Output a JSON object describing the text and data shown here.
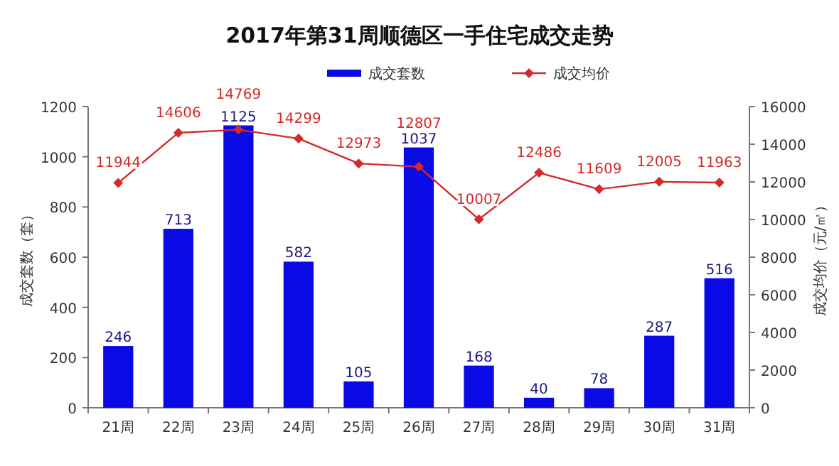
{
  "chart_data": {
    "type": "bar",
    "title": "2017年第31周顺德区一手住宅成交走势",
    "ylabel": "成交套数（套）",
    "y2label": "成交均价（元/㎡）",
    "categories": [
      "21周",
      "22周",
      "23周",
      "24周",
      "25周",
      "26周",
      "27周",
      "28周",
      "29周",
      "30周",
      "31周"
    ],
    "series": [
      {
        "name": "成交套数",
        "color": "#0a0ae6",
        "values": [
          246,
          713,
          1125,
          582,
          105,
          1037,
          168,
          40,
          78,
          287,
          516
        ]
      },
      {
        "name": "成交均价",
        "type": "line",
        "axis": "y2",
        "color": "#d42a2a",
        "marker": "diamond",
        "values": [
          11944,
          14606,
          14769,
          14299,
          12973,
          12807,
          10007,
          12486,
          11609,
          12005,
          11963
        ]
      }
    ],
    "ylim": [
      0,
      1200
    ],
    "yticks": [
      0,
      200,
      400,
      600,
      800,
      1000,
      1200
    ],
    "y2lim": [
      0,
      16000
    ],
    "y2ticks": [
      0,
      2000,
      4000,
      6000,
      8000,
      10000,
      12000,
      14000,
      16000
    ],
    "data_labels": true,
    "legend": "top"
  }
}
